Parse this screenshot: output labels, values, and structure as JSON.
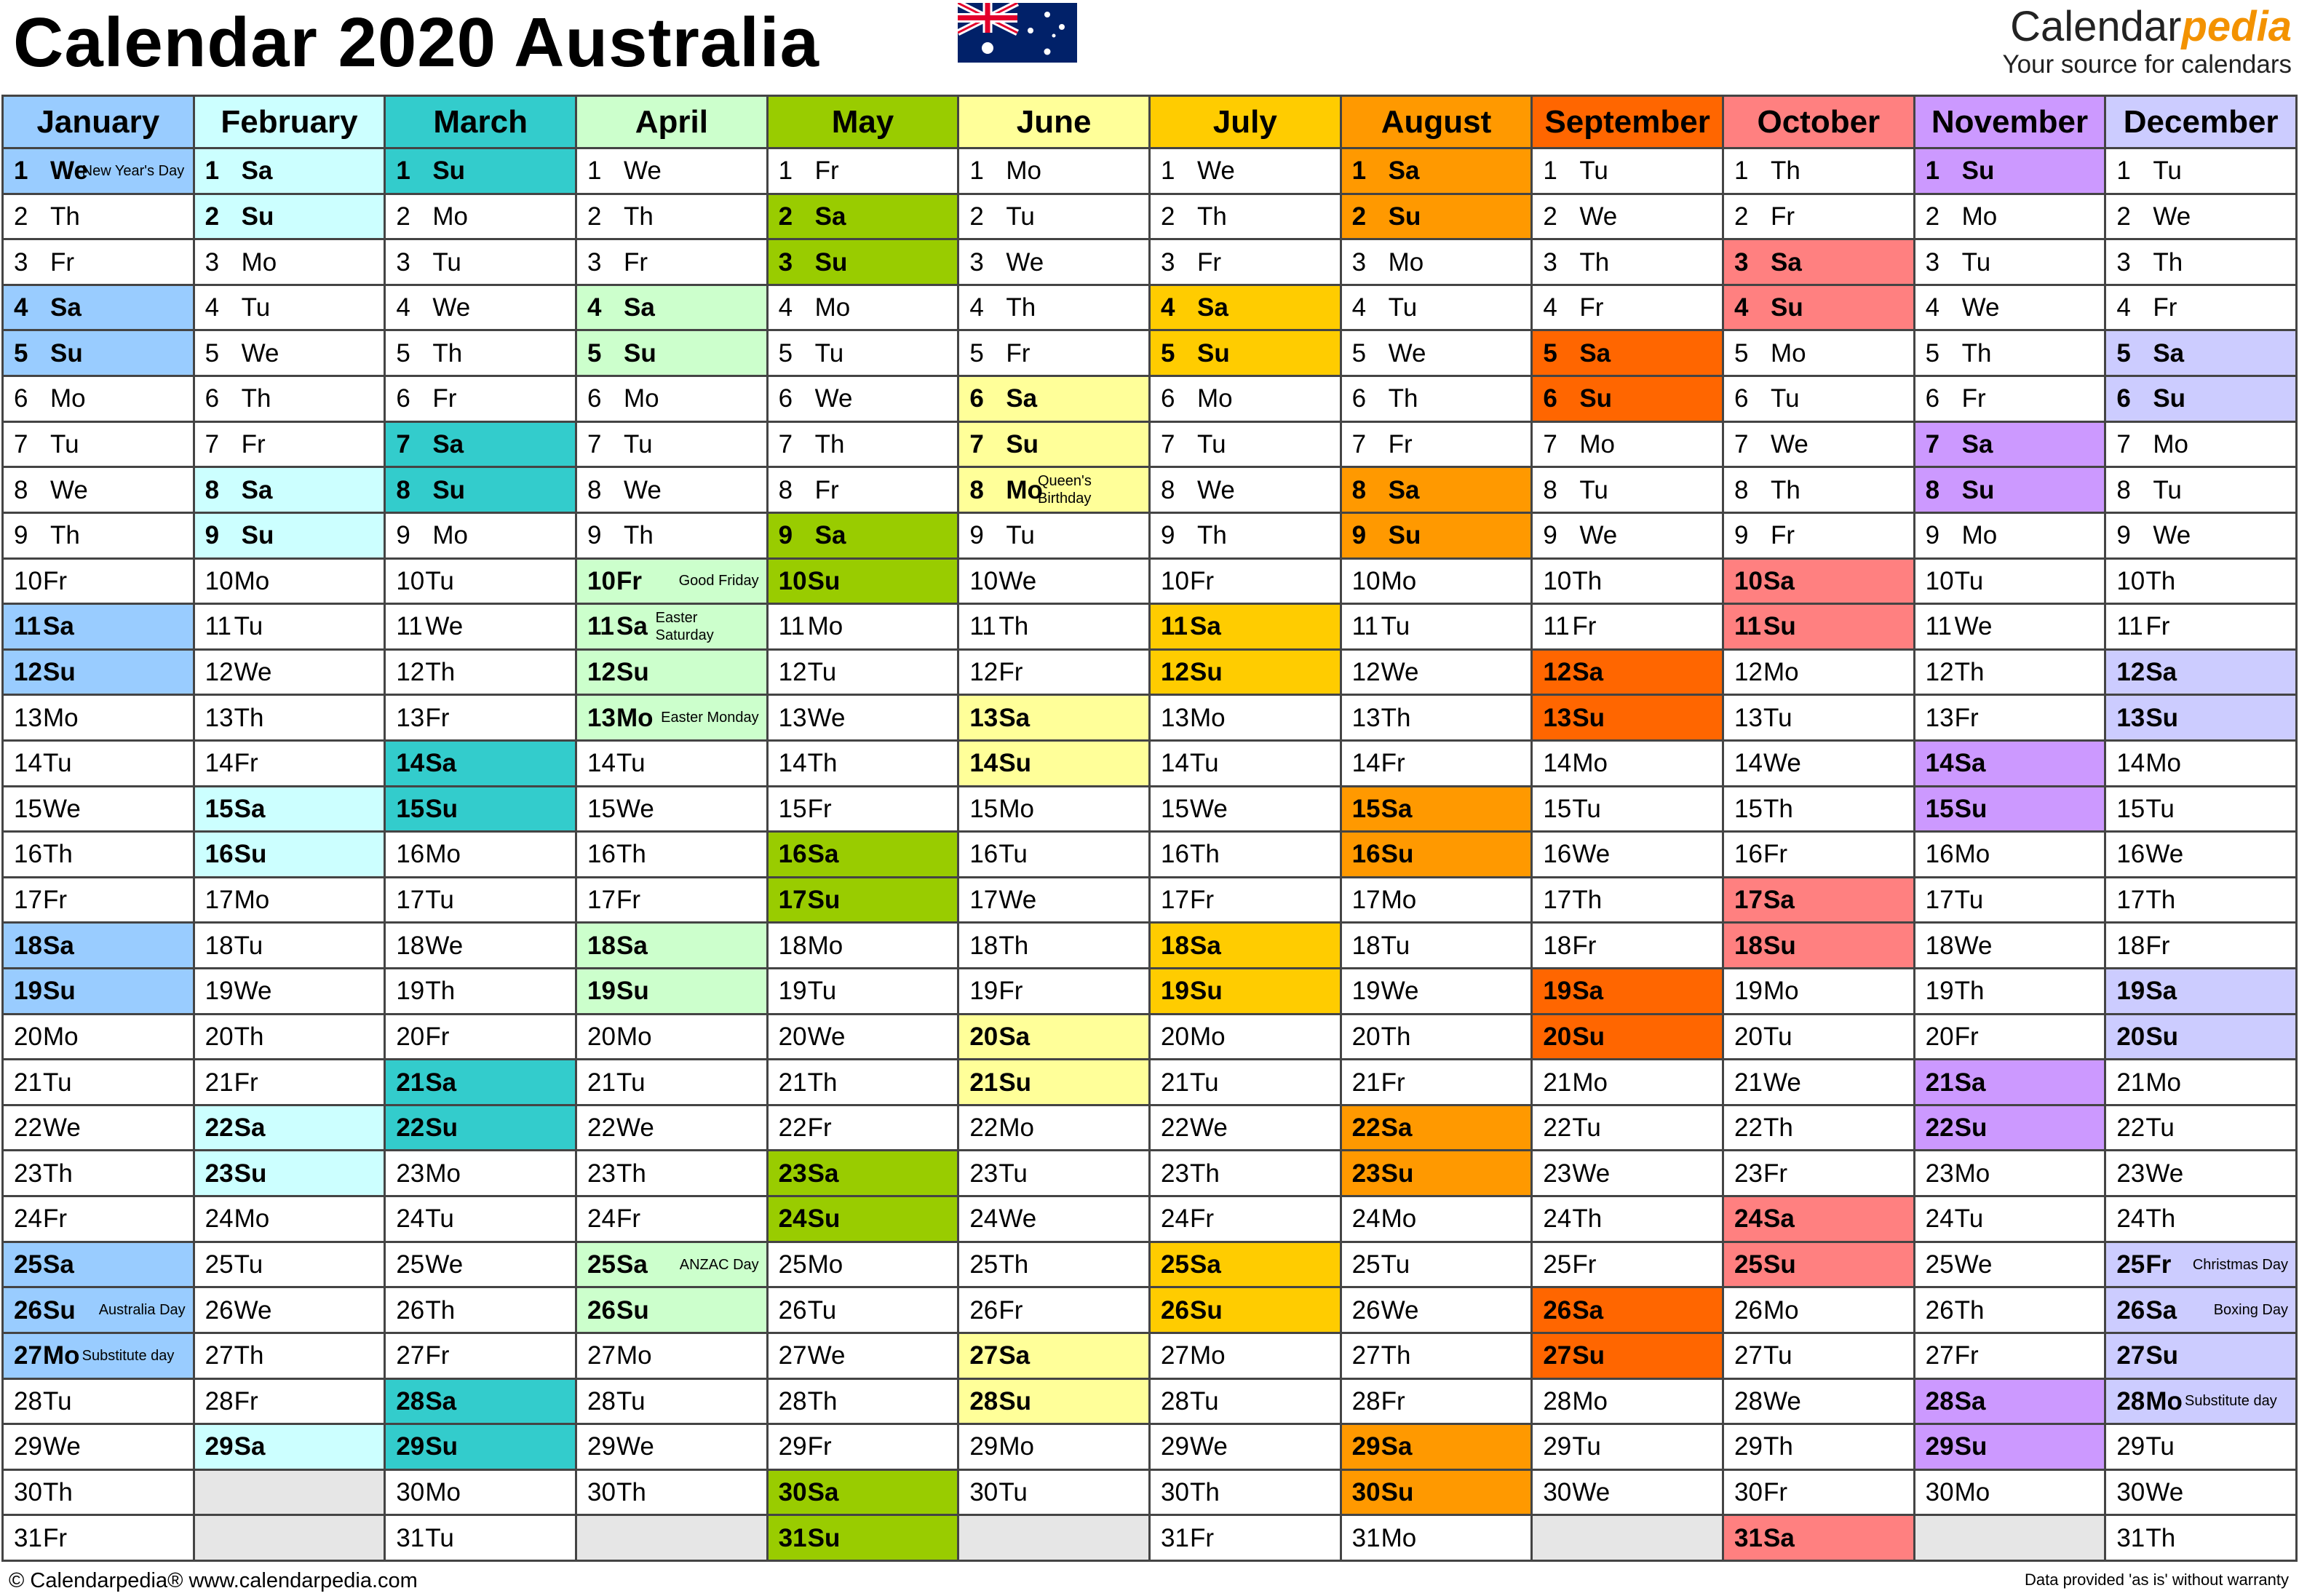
{
  "title": "Calendar 2020 Australia",
  "brand": {
    "name_plain": "Calendar",
    "name_accent": "pedia",
    "tagline": "Your source for calendars"
  },
  "footer": {
    "left": "© Calendarpedia®   www.calendarpedia.com",
    "right": "Data provided 'as is' without warranty"
  },
  "colors": {
    "accent_brand": "#f39200",
    "weekend": [
      "#99ccff",
      "#ccffff",
      "#33cccc",
      "#ccffcc",
      "#99cc00",
      "#ffff99",
      "#ffcc00",
      "#ff9900",
      "#ff6600",
      "#ff8080",
      "#cc99ff",
      "#ccccff"
    ],
    "weekday": [
      "#ccecff",
      "#ffffff",
      "#ffffff",
      "#ccffcc",
      "#ffffff",
      "#ffff99",
      "#ffffff",
      "#ffffff",
      "#ffffff",
      "#ffffff",
      "#ffffff",
      "#ccccff"
    ],
    "header": [
      "#99ccff",
      "#ccffff",
      "#33cccc",
      "#ccffcc",
      "#99cc00",
      "#ffff99",
      "#ffcc00",
      "#ff9900",
      "#ff6600",
      "#ff8080",
      "#cc99ff",
      "#ccccff"
    ]
  },
  "months": [
    {
      "name": "January",
      "first_weekday": 3,
      "days": 31
    },
    {
      "name": "February",
      "first_weekday": 6,
      "days": 29
    },
    {
      "name": "March",
      "first_weekday": 0,
      "days": 31
    },
    {
      "name": "April",
      "first_weekday": 3,
      "days": 30
    },
    {
      "name": "May",
      "first_weekday": 5,
      "days": 31
    },
    {
      "name": "June",
      "first_weekday": 1,
      "days": 30
    },
    {
      "name": "July",
      "first_weekday": 3,
      "days": 31
    },
    {
      "name": "August",
      "first_weekday": 6,
      "days": 31
    },
    {
      "name": "September",
      "first_weekday": 2,
      "days": 30
    },
    {
      "name": "October",
      "first_weekday": 4,
      "days": 31
    },
    {
      "name": "November",
      "first_weekday": 0,
      "days": 30
    },
    {
      "name": "December",
      "first_weekday": 2,
      "days": 31
    }
  ],
  "weekday_abbr": [
    "Su",
    "Mo",
    "Tu",
    "We",
    "Th",
    "Fr",
    "Sa"
  ],
  "holidays": [
    {
      "month": 0,
      "day": 1,
      "label": "New Year's Day"
    },
    {
      "month": 0,
      "day": 26,
      "label": "Australia Day"
    },
    {
      "month": 0,
      "day": 27,
      "label": "Substitute day"
    },
    {
      "month": 3,
      "day": 10,
      "label": "Good Friday"
    },
    {
      "month": 3,
      "day": 11,
      "label": "Easter Saturday"
    },
    {
      "month": 3,
      "day": 13,
      "label": "Easter Monday"
    },
    {
      "month": 3,
      "day": 25,
      "label": "ANZAC Day"
    },
    {
      "month": 5,
      "day": 8,
      "label": "Queen's Birthday"
    },
    {
      "month": 11,
      "day": 25,
      "label": "Christmas Day"
    },
    {
      "month": 11,
      "day": 26,
      "label": "Boxing Day"
    },
    {
      "month": 11,
      "day": 28,
      "label": "Substitute day"
    }
  ]
}
